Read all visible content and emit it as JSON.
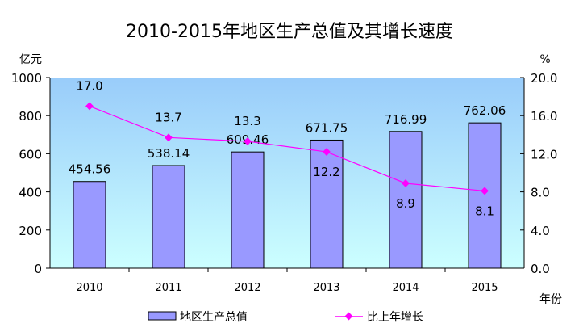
{
  "chart_data": {
    "type": "bar+line",
    "title": "2010-2015年地区生产总值及其增长速度",
    "categories": [
      "2010",
      "2011",
      "2012",
      "2013",
      "2014",
      "2015"
    ],
    "xlabel": "年份",
    "ylabel_left": "亿元",
    "ylabel_right": "%",
    "ylim_left": [
      0,
      1000
    ],
    "ylim_right": [
      0,
      20
    ],
    "yticks_left": [
      "0",
      "200",
      "400",
      "600",
      "800",
      "1000"
    ],
    "yticks_right": [
      "0.0",
      "4.0",
      "8.0",
      "12.0",
      "16.0",
      "20.0"
    ],
    "grid": false,
    "legend_placement": "bottom",
    "series": [
      {
        "name": "地区生产总值",
        "type": "bar",
        "axis": "left",
        "color": "#9999ff",
        "values": [
          454.56,
          538.14,
          609.46,
          671.75,
          716.99,
          762.06
        ],
        "labels": [
          "454.56",
          "538.14",
          "609.46",
          "671.75",
          "716.99",
          "762.06"
        ]
      },
      {
        "name": "比上年增长",
        "type": "line",
        "axis": "right",
        "color": "#ff00ff",
        "values": [
          17.0,
          13.7,
          13.3,
          12.2,
          8.9,
          8.1
        ],
        "labels": [
          "17.0",
          "13.7",
          "13.3",
          "12.2",
          "8.9",
          "8.1"
        ],
        "label_side": [
          "above",
          "above",
          "above",
          "below",
          "below",
          "below"
        ]
      }
    ]
  }
}
